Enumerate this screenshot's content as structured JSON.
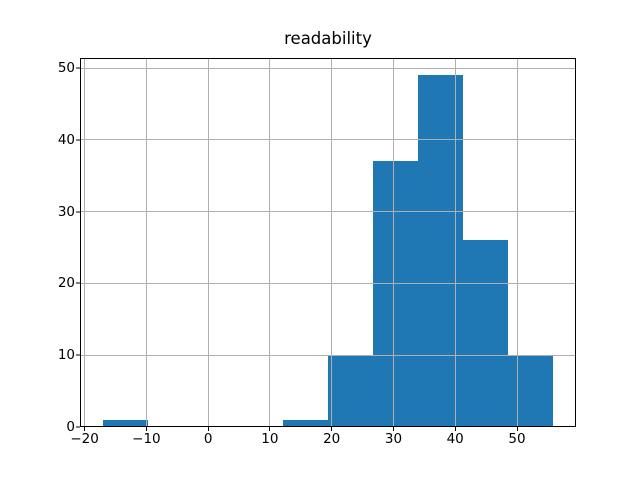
{
  "chart_data": {
    "type": "histogram",
    "title": "readability",
    "xlabel": "",
    "ylabel": "",
    "bin_edges": [
      -17.1,
      -9.8,
      -2.5,
      4.8,
      12.1,
      19.4,
      26.7,
      34.0,
      41.3,
      48.6,
      55.9
    ],
    "counts": [
      1,
      0,
      0,
      0,
      1,
      10,
      37,
      49,
      26,
      10
    ],
    "xlim": [
      -20.75,
      59.55
    ],
    "ylim": [
      0,
      51.45
    ],
    "x_ticks": [
      -20,
      -10,
      0,
      10,
      20,
      30,
      40,
      50
    ],
    "x_tick_labels": [
      "−20",
      "−10",
      "0",
      "10",
      "20",
      "30",
      "40",
      "50"
    ],
    "y_ticks": [
      0,
      10,
      20,
      30,
      40,
      50
    ],
    "y_tick_labels": [
      "0",
      "10",
      "20",
      "30",
      "40",
      "50"
    ],
    "grid": true,
    "grid_above_bars": true,
    "legend": "none",
    "bar_color": "#1f77b4",
    "grid_color": "#b0b0b0",
    "spine_color": "#000000",
    "background_color": "#ffffff"
  }
}
